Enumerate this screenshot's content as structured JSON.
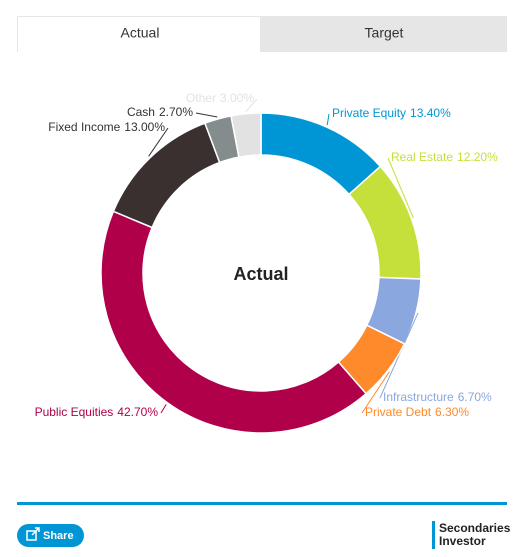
{
  "tabs": [
    "Actual",
    "Target"
  ],
  "chart_data": {
    "type": "donut",
    "center_label": "Actual",
    "categories": [
      "Private Equity",
      "Real Estate",
      "Infrastructure",
      "Private Debt",
      "Public Equities",
      "Fixed Income",
      "Cash",
      "Other"
    ],
    "values": [
      13.4,
      12.2,
      6.7,
      6.3,
      42.7,
      13.0,
      2.7,
      3.0
    ],
    "value_labels": [
      "13.40%",
      "12.20%",
      "6.70%",
      "6.30%",
      "42.70%",
      "13.00%",
      "2.70%",
      "3.00%"
    ],
    "colors": [
      "#0096d6",
      "#c5e03a",
      "#8aa7e0",
      "#ff8a2b",
      "#b0004a",
      "#3a302f",
      "#858c8e",
      "#e2e2e2"
    ]
  },
  "share_button": "Share",
  "brand": [
    "Secondaries",
    "Investor"
  ]
}
